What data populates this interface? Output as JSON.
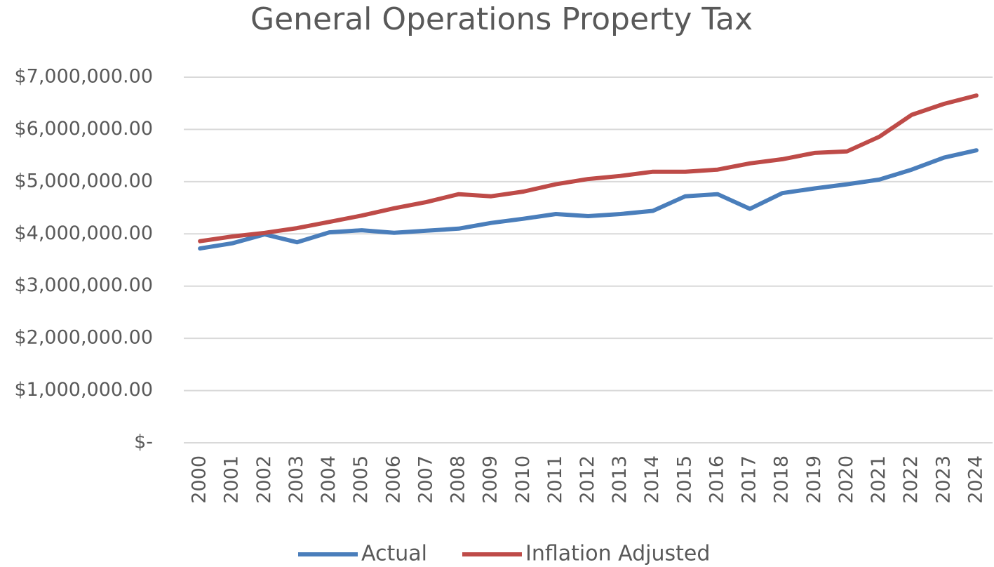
{
  "chart_data": {
    "type": "line",
    "title": "General Operations Property Tax",
    "categories": [
      "2000",
      "2001",
      "2002",
      "2003",
      "2004",
      "2005",
      "2006",
      "2007",
      "2008",
      "2009",
      "2010",
      "2011",
      "2012",
      "2013",
      "2014",
      "2015",
      "2016",
      "2017",
      "2018",
      "2019",
      "2020",
      "2021",
      "2022",
      "2023",
      "2024"
    ],
    "series": [
      {
        "name": "Actual",
        "color": "#4a7ebb",
        "values": [
          3720000,
          3820000,
          3990000,
          3840000,
          4030000,
          4070000,
          4020000,
          4060000,
          4100000,
          4210000,
          4290000,
          4380000,
          4340000,
          4380000,
          4440000,
          4720000,
          4760000,
          4480000,
          4780000,
          4870000,
          4950000,
          5040000,
          5230000,
          5460000,
          5600000
        ]
      },
      {
        "name": "Inflation Adjusted",
        "color": "#be4b48",
        "values": [
          3860000,
          3950000,
          4020000,
          4110000,
          4230000,
          4350000,
          4490000,
          4610000,
          4760000,
          4720000,
          4810000,
          4950000,
          5050000,
          5110000,
          5190000,
          5190000,
          5230000,
          5350000,
          5430000,
          5550000,
          5580000,
          5860000,
          6280000,
          6490000,
          6650000
        ]
      }
    ],
    "ylim": [
      0,
      7000000
    ],
    "yticks": [
      {
        "value": 0,
        "label": "$-"
      },
      {
        "value": 1000000,
        "label": "$1,000,000.00"
      },
      {
        "value": 2000000,
        "label": "$2,000,000.00"
      },
      {
        "value": 3000000,
        "label": "$3,000,000.00"
      },
      {
        "value": 4000000,
        "label": "$4,000,000.00"
      },
      {
        "value": 5000000,
        "label": "$5,000,000.00"
      },
      {
        "value": 6000000,
        "label": "$6,000,000.00"
      },
      {
        "value": 7000000,
        "label": "$7,000,000.00"
      }
    ],
    "grid": true,
    "legend": "bottom"
  }
}
